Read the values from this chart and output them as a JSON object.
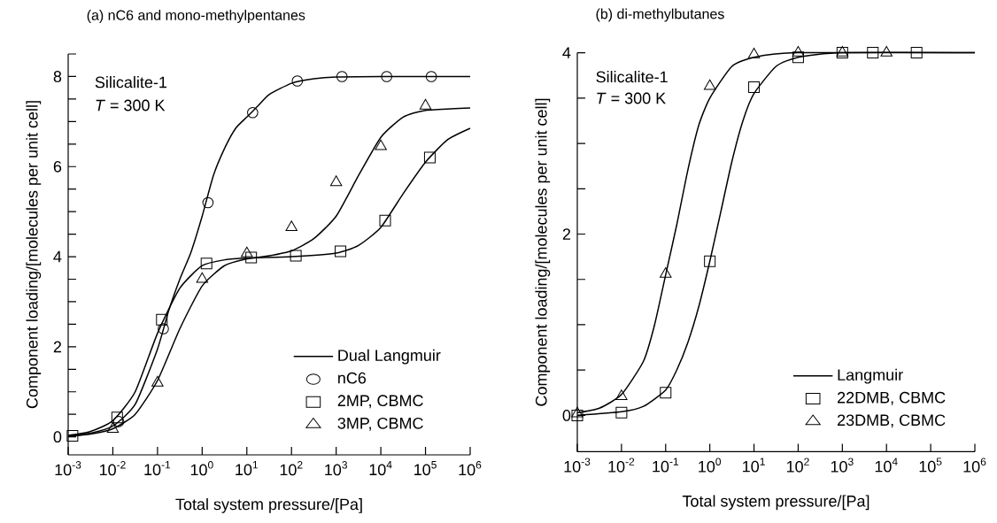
{
  "chart_data": [
    {
      "type": "line",
      "title": "(a) nC6 and mono-methylpentanes",
      "xlabel": "Total system pressure/[Pa]",
      "ylabel": "Component loading/[molecules per unit cell]",
      "annotations": [
        "Silicalite-1",
        "*T* = 300 K"
      ],
      "log": "x",
      "legend": "bottom right",
      "xlim": [
        0.001,
        1000000
      ],
      "ylim": [
        -0.4,
        8.5
      ],
      "xticks": [
        {
          "value": 0.001,
          "label": "10$^{-3}$"
        },
        {
          "value": 0.01,
          "label": "10$^{-2}$"
        },
        {
          "value": 0.1,
          "label": "10$^{-1}$"
        },
        {
          "value": 1,
          "label": "10$^{0}$"
        },
        {
          "value": 10,
          "label": "10$^{1}$"
        },
        {
          "value": 100,
          "label": "10$^{2}$"
        },
        {
          "value": 1000,
          "label": "10$^{3}$"
        },
        {
          "value": 10000,
          "label": "10$^{4}$"
        },
        {
          "value": 100000,
          "label": "10$^{5}$"
        },
        {
          "value": 1000000,
          "label": "10$^{6}$"
        }
      ],
      "yticks": [
        0,
        {
          "value": 0.5,
          "label": null
        },
        {
          "value": 1,
          "label": null
        },
        {
          "value": 1.5,
          "label": null
        },
        2,
        {
          "value": 2.5,
          "label": null
        },
        {
          "value": 3,
          "label": null
        },
        {
          "value": 3.5,
          "label": null
        },
        4,
        {
          "value": 4.5,
          "label": null
        },
        {
          "value": 5,
          "label": null
        },
        {
          "value": 5.5,
          "label": null
        },
        6,
        {
          "value": 6.5,
          "label": null
        },
        {
          "value": 7,
          "label": null
        },
        {
          "value": 7.5,
          "label": null
        },
        8,
        {
          "value": 8.5,
          "label": null
        }
      ],
      "series": [
        {
          "name": "Dual Langmuir",
          "color": "#000000",
          "x": [
            0.001,
            0.00316,
            0.01,
            0.0316,
            0.1,
            0.178,
            0.316,
            0.562,
            1,
            1.78,
            3.16,
            5.62,
            10,
            17.8,
            31.6,
            100,
            316,
            1000,
            10000,
            1000000
          ],
          "values": [
            0.02,
            0.08,
            0.24,
            0.72,
            1.95,
            2.8,
            3.5,
            4.1,
            4.9,
            5.8,
            6.4,
            6.85,
            7.1,
            7.35,
            7.6,
            7.85,
            7.95,
            7.99,
            8.0,
            8.0
          ]
        },
        {
          "color": "#000000",
          "x": [
            0.001,
            0.00316,
            0.01,
            0.0316,
            0.1,
            0.316,
            1,
            3.16,
            10,
            100,
            1000,
            3160,
            10000,
            31600,
            100000,
            316000,
            1000000
          ],
          "values": [
            0.03,
            0.12,
            0.36,
            1.0,
            2.3,
            3.3,
            3.8,
            3.93,
            3.97,
            4.0,
            4.08,
            4.25,
            4.65,
            5.4,
            6.1,
            6.6,
            6.85
          ]
        },
        {
          "color": "#000000",
          "x": [
            0.001,
            0.00316,
            0.01,
            0.0316,
            0.1,
            0.316,
            1,
            3.16,
            10,
            31.6,
            100,
            316,
            1000,
            3160,
            10000,
            31600,
            100000,
            1000000
          ],
          "values": [
            0.01,
            0.06,
            0.18,
            0.5,
            1.25,
            2.4,
            3.35,
            3.8,
            3.95,
            4.02,
            4.13,
            4.4,
            4.9,
            5.8,
            6.65,
            7.1,
            7.25,
            7.3
          ]
        },
        {
          "name": "nC6",
          "type": "scatter",
          "marker": "circle",
          "color": "#000000",
          "x": [
            0.0135,
            0.135,
            1.35,
            13.5,
            135,
            1350,
            13500,
            135000
          ],
          "values": [
            0.34,
            2.4,
            5.2,
            7.2,
            7.9,
            8.0,
            8.0,
            8.0
          ]
        },
        {
          "name": "2MP, CBMC",
          "type": "scatter",
          "marker": "square",
          "color": "#000000",
          "x": [
            0.00125,
            0.0125,
            0.125,
            1.25,
            12.5,
            125,
            1250,
            12500,
            125000
          ],
          "values": [
            0.02,
            0.43,
            2.6,
            3.85,
            3.98,
            4.02,
            4.12,
            4.8,
            6.2
          ]
        },
        {
          "name": "3MP, CBMC",
          "type": "scatter",
          "marker": "triangle",
          "color": "#000000",
          "x": [
            0.01,
            0.1,
            1,
            10,
            100,
            1000,
            10000,
            100000
          ],
          "values": [
            0.17,
            1.2,
            3.5,
            4.07,
            4.65,
            5.65,
            6.45,
            7.35
          ]
        }
      ]
    },
    {
      "type": "line",
      "title": "(b) di-methylbutanes",
      "xlabel": "Total system pressure/[Pa]",
      "ylabel": "Component loading/[molecules per unit cell]",
      "annotations": [
        "Silicalite-1",
        "*T* = 300 K"
      ],
      "log": "x",
      "legend": "bottom right",
      "xlim": [
        0.001,
        1000000
      ],
      "ylim": [
        -0.4,
        4
      ],
      "xticks": [
        {
          "value": 0.001,
          "label": "10$^{-3}$"
        },
        {
          "value": 0.01,
          "label": "10$^{-2}$"
        },
        {
          "value": 0.1,
          "label": "10$^{-1}$"
        },
        {
          "value": 1,
          "label": "10$^{0}$"
        },
        {
          "value": 10,
          "label": "10$^{1}$"
        },
        {
          "value": 100,
          "label": "10$^{2}$"
        },
        {
          "value": 1000,
          "label": "10$^{3}$"
        },
        {
          "value": 10000,
          "label": "10$^{4}$"
        },
        {
          "value": 100000,
          "label": "10$^{5}$"
        },
        {
          "value": 1000000,
          "label": "10$^{6}$"
        }
      ],
      "yticks": [
        0,
        {
          "value": 0.5,
          "label": null
        },
        {
          "value": 1,
          "label": null
        },
        {
          "value": 1.5,
          "label": null
        },
        2,
        {
          "value": 2.5,
          "label": null
        },
        {
          "value": 3,
          "label": null
        },
        {
          "value": 3.5,
          "label": null
        },
        4
      ],
      "series": [
        {
          "name": "Langmuir",
          "color": "#000000",
          "x": [
            0.001,
            0.01,
            0.0316,
            0.1,
            0.178,
            0.316,
            0.562,
            1,
            1.78,
            3.16,
            5.62,
            10,
            31.6,
            100,
            1000,
            1000000
          ],
          "values": [
            0.0,
            0.04,
            0.1,
            0.28,
            0.5,
            0.8,
            1.2,
            1.7,
            2.25,
            2.8,
            3.25,
            3.55,
            3.85,
            3.95,
            4.0,
            4.0
          ]
        },
        {
          "color": "#000000",
          "x": [
            0.001,
            0.00316,
            0.01,
            0.0316,
            0.0562,
            0.1,
            0.178,
            0.316,
            0.562,
            1,
            3.16,
            10,
            100,
            1000000
          ],
          "values": [
            0.03,
            0.08,
            0.23,
            0.6,
            1.0,
            1.55,
            2.1,
            2.7,
            3.2,
            3.5,
            3.85,
            3.95,
            4.0,
            4.0
          ]
        },
        {
          "name": "22DMB, CBMC",
          "type": "scatter",
          "marker": "square",
          "color": "#000000",
          "x": [
            0.001,
            0.01,
            0.1,
            1,
            10,
            100,
            1000,
            4900,
            48000
          ],
          "values": [
            0.0,
            0.03,
            0.25,
            1.7,
            3.62,
            3.95,
            4.0,
            4.0,
            4.0
          ]
        },
        {
          "name": "23DMB, CBMC",
          "type": "scatter",
          "marker": "triangle",
          "color": "#000000",
          "x": [
            0.001,
            0.01,
            0.1,
            1,
            10,
            100,
            1000,
            10000
          ],
          "values": [
            0.02,
            0.21,
            1.56,
            3.63,
            3.98,
            4.0,
            4.0,
            4.0
          ]
        }
      ]
    }
  ]
}
